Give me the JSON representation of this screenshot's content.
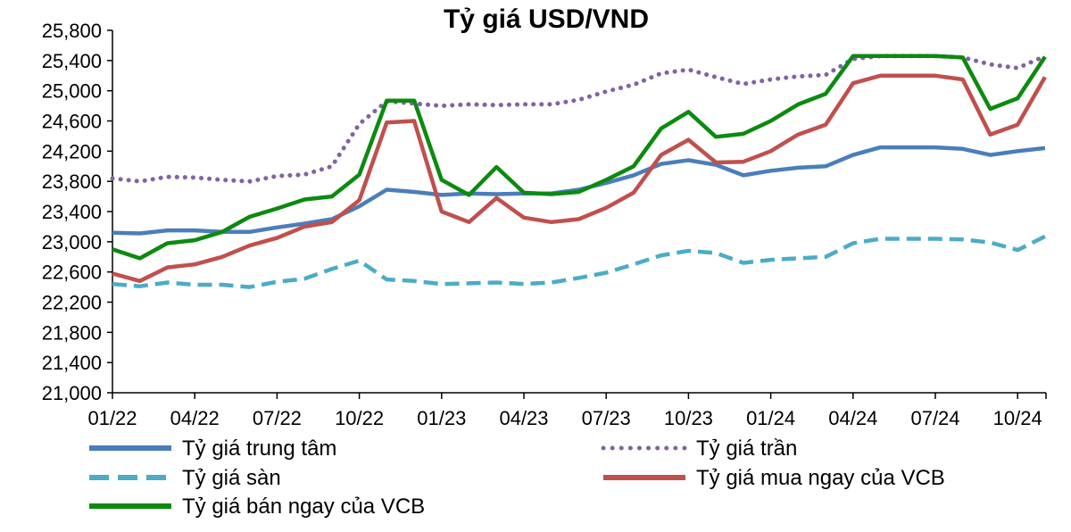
{
  "chart_data": {
    "type": "line",
    "title": "Tỷ giá USD/VND",
    "xlabel": "",
    "ylabel": "",
    "ylim": [
      21000,
      25800
    ],
    "yticks": [
      "25,800",
      "25,400",
      "25,000",
      "24,600",
      "24,200",
      "23,800",
      "23,400",
      "23,000",
      "22,600",
      "22,200",
      "21,800",
      "21,400",
      "21,000"
    ],
    "xticks": [
      "01/22",
      "04/22",
      "07/22",
      "10/22",
      "01/23",
      "04/23",
      "07/23",
      "10/23",
      "01/24",
      "04/24",
      "07/24",
      "10/24"
    ],
    "x_range": [
      "2022-01",
      "2024-11"
    ],
    "grid": false,
    "legend_position": "bottom",
    "x": [
      "2022-01",
      "2022-02",
      "2022-03",
      "2022-04",
      "2022-05",
      "2022-06",
      "2022-07",
      "2022-08",
      "2022-09",
      "2022-10",
      "2022-11",
      "2022-12",
      "2023-01",
      "2023-02",
      "2023-03",
      "2023-04",
      "2023-05",
      "2023-06",
      "2023-07",
      "2023-08",
      "2023-09",
      "2023-10",
      "2023-11",
      "2023-12",
      "2024-01",
      "2024-02",
      "2024-03",
      "2024-04",
      "2024-05",
      "2024-06",
      "2024-07",
      "2024-08",
      "2024-09",
      "2024-10",
      "2024-11"
    ],
    "series": [
      {
        "name": "Tỷ giá trung tâm",
        "color": "#4a7ebb",
        "style": "solid",
        "values": [
          23120,
          23110,
          23150,
          23150,
          23130,
          23130,
          23190,
          23240,
          23300,
          23470,
          23690,
          23660,
          23620,
          23640,
          23630,
          23640,
          23640,
          23690,
          23780,
          23880,
          24030,
          24080,
          24020,
          23880,
          23940,
          23980,
          24000,
          24150,
          24250,
          24250,
          24250,
          24230,
          24150,
          24200,
          24240
        ]
      },
      {
        "name": "Tỷ giá trần",
        "color": "#8064a2",
        "style": "dotted",
        "values": [
          23840,
          23800,
          23860,
          23850,
          23820,
          23800,
          23870,
          23890,
          24000,
          24560,
          24860,
          24830,
          24800,
          24820,
          24810,
          24820,
          24820,
          24880,
          24990,
          25080,
          25230,
          25280,
          25180,
          25090,
          25150,
          25190,
          25210,
          25420,
          25460,
          25460,
          25460,
          25440,
          25350,
          25300,
          25460
        ]
      },
      {
        "name": "Tỷ giá sàn",
        "color": "#4bacc6",
        "style": "dashed",
        "values": [
          22440,
          22410,
          22460,
          22430,
          22430,
          22400,
          22470,
          22510,
          22640,
          22750,
          22500,
          22480,
          22440,
          22450,
          22460,
          22440,
          22460,
          22520,
          22590,
          22700,
          22820,
          22880,
          22850,
          22720,
          22760,
          22780,
          22800,
          22980,
          23040,
          23040,
          23040,
          23030,
          22990,
          22890,
          23070
        ]
      },
      {
        "name": "Tỷ giá mua ngay của VCB",
        "color": "#c0504d",
        "style": "solid",
        "values": [
          22580,
          22480,
          22660,
          22700,
          22800,
          22950,
          23050,
          23200,
          23260,
          23550,
          24580,
          24600,
          23400,
          23260,
          23580,
          23320,
          23260,
          23300,
          23450,
          23650,
          24150,
          24350,
          24050,
          24060,
          24200,
          24420,
          24550,
          25100,
          25200,
          25200,
          25200,
          25150,
          24420,
          24550,
          25180
        ]
      },
      {
        "name": "Tỷ giá bán ngay của VCB",
        "color": "#0c8a10",
        "style": "solid",
        "values": [
          22900,
          22780,
          22980,
          23020,
          23130,
          23330,
          23440,
          23560,
          23600,
          23890,
          24870,
          24870,
          23820,
          23620,
          23990,
          23650,
          23630,
          23660,
          23820,
          24000,
          24500,
          24720,
          24390,
          24430,
          24600,
          24820,
          24960,
          25460,
          25460,
          25460,
          25460,
          25440,
          24760,
          24900,
          25450
        ]
      }
    ]
  }
}
